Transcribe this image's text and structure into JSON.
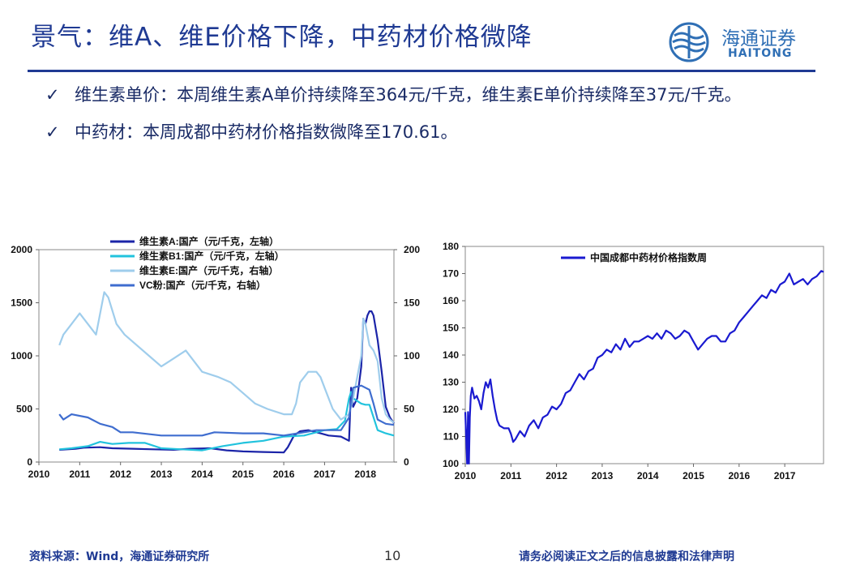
{
  "slide": {
    "title": "景气：维A、维E价格下降，中药材价格微降",
    "logo_cn": "海通证券",
    "logo_en": "HAITONG",
    "bullets": [
      "维生素单价：本周维生素A单价持续降至364元/千克，维生素E单价持续降至37元/千克。",
      "中药材：本周成都中药材价格指数微降至170.61。"
    ],
    "footer_source": "资料来源：Wind，海通证券研究所",
    "page_number": "10",
    "footer_disclaimer": "请务必阅读正文之后的信息披露和法律声明",
    "colors": {
      "title": "#1f3a93",
      "vitA": "#1b24a8",
      "vitB1": "#22c3dd",
      "vitE": "#9fcdec",
      "vc": "#3f6dcf",
      "tcm": "#1a1ad0"
    }
  },
  "chart_data": [
    {
      "type": "line",
      "x_ticks": [
        "2010",
        "2011",
        "2012",
        "2013",
        "2014",
        "2015",
        "2016",
        "2017",
        "2018"
      ],
      "xlim": [
        2010.0,
        2018.7
      ],
      "left_axis": {
        "ylim": [
          0,
          2000
        ],
        "ticks": [
          "0",
          "500",
          "1000",
          "1500",
          "2000"
        ]
      },
      "right_axis": {
        "ylim": [
          0,
          200
        ],
        "ticks": [
          "0",
          "50",
          "100",
          "150",
          "200"
        ]
      },
      "series": [
        {
          "name": "维生素A:国产（元/千克，左轴）",
          "axis": "left",
          "color": "#1b24a8",
          "x": [
            2010.5,
            2010.7,
            2010.9,
            2011.1,
            2011.5,
            2011.8,
            2012.3,
            2012.8,
            2013.3,
            2013.7,
            2014.2,
            2014.6,
            2015.0,
            2015.5,
            2016.0,
            2016.1,
            2016.25,
            2016.4,
            2016.6,
            2016.9,
            2017.1,
            2017.4,
            2017.6,
            2017.65,
            2017.7,
            2017.8,
            2017.9,
            2017.95,
            2018.0,
            2018.05,
            2018.1,
            2018.15,
            2018.2,
            2018.3,
            2018.4,
            2018.5,
            2018.6,
            2018.7
          ],
          "y": [
            115,
            120,
            125,
            135,
            140,
            130,
            125,
            120,
            115,
            125,
            130,
            110,
            100,
            95,
            90,
            140,
            250,
            290,
            300,
            270,
            250,
            240,
            200,
            700,
            520,
            600,
            900,
            1350,
            1300,
            1380,
            1420,
            1420,
            1380,
            1150,
            850,
            520,
            420,
            364
          ]
        },
        {
          "name": "维生素B1:国产（元/千克，左轴）",
          "axis": "left",
          "color": "#22c3dd",
          "x": [
            2010.5,
            2010.8,
            2011.2,
            2011.5,
            2011.8,
            2012.2,
            2012.6,
            2013.0,
            2013.5,
            2014.0,
            2014.5,
            2015.0,
            2015.5,
            2016.0,
            2016.5,
            2017.0,
            2017.3,
            2017.5,
            2017.6,
            2017.65,
            2017.7,
            2017.9,
            2018.0,
            2018.1,
            2018.3,
            2018.5,
            2018.7
          ],
          "y": [
            120,
            130,
            150,
            190,
            170,
            180,
            180,
            130,
            120,
            110,
            150,
            180,
            200,
            240,
            250,
            300,
            310,
            390,
            600,
            660,
            600,
            550,
            540,
            540,
            300,
            270,
            250
          ]
        },
        {
          "name": "维生素E:国产（元/千克，右轴）",
          "axis": "right",
          "color": "#9fcdec",
          "x": [
            2010.5,
            2010.6,
            2010.8,
            2011.0,
            2011.2,
            2011.4,
            2011.6,
            2011.7,
            2011.9,
            2012.1,
            2012.4,
            2012.7,
            2013.0,
            2013.2,
            2013.6,
            2014.0,
            2014.4,
            2014.7,
            2015.0,
            2015.3,
            2015.6,
            2016.0,
            2016.2,
            2016.3,
            2016.4,
            2016.6,
            2016.8,
            2016.9,
            2017.0,
            2017.2,
            2017.4,
            2017.6,
            2017.7,
            2017.8,
            2017.9,
            2017.95,
            2018.0,
            2018.05,
            2018.1,
            2018.2,
            2018.3,
            2018.4,
            2018.5,
            2018.6,
            2018.7
          ],
          "y": [
            110,
            120,
            130,
            140,
            130,
            120,
            160,
            155,
            130,
            120,
            110,
            100,
            90,
            95,
            105,
            85,
            80,
            75,
            65,
            55,
            50,
            45,
            45,
            55,
            75,
            85,
            85,
            80,
            70,
            50,
            40,
            45,
            60,
            80,
            100,
            135,
            130,
            120,
            110,
            105,
            95,
            60,
            45,
            40,
            37
          ]
        },
        {
          "name": "VC粉:国产（元/千克，右轴）",
          "axis": "right",
          "color": "#3f6dcf",
          "x": [
            2010.5,
            2010.6,
            2010.8,
            2011.2,
            2011.5,
            2011.8,
            2012.0,
            2012.3,
            2013.0,
            2014.0,
            2014.3,
            2015.0,
            2015.5,
            2016.0,
            2016.5,
            2016.8,
            2017.0,
            2017.4,
            2017.6,
            2017.7,
            2017.9,
            2018.0,
            2018.1,
            2018.2,
            2018.3,
            2018.5,
            2018.7
          ],
          "y": [
            45,
            40,
            45,
            42,
            36,
            33,
            28,
            28,
            25,
            25,
            28,
            27,
            27,
            25,
            28,
            30,
            30,
            30,
            42,
            70,
            72,
            70,
            68,
            55,
            40,
            36,
            35
          ]
        }
      ]
    },
    {
      "type": "line",
      "x_ticks": [
        "2010",
        "2011",
        "2012",
        "2013",
        "2014",
        "2015",
        "2016",
        "2017"
      ],
      "xlim": [
        2010.0,
        2017.85
      ],
      "ylim": [
        100,
        180
      ],
      "y_ticks": [
        "100",
        "110",
        "120",
        "130",
        "140",
        "150",
        "160",
        "170",
        "180"
      ],
      "series": [
        {
          "name": "中国成都中药材价格指数周",
          "color": "#1a1ad0",
          "x": [
            2010.0,
            2010.04,
            2010.06,
            2010.08,
            2010.1,
            2010.12,
            2010.15,
            2010.2,
            2010.25,
            2010.3,
            2010.35,
            2010.4,
            2010.45,
            2010.5,
            2010.55,
            2010.6,
            2010.65,
            2010.7,
            2010.75,
            2010.85,
            2010.95,
            2011.0,
            2011.05,
            2011.1,
            2011.2,
            2011.3,
            2011.4,
            2011.5,
            2011.6,
            2011.7,
            2011.8,
            2011.9,
            2012.0,
            2012.1,
            2012.2,
            2012.3,
            2012.4,
            2012.5,
            2012.6,
            2012.7,
            2012.8,
            2012.9,
            2013.0,
            2013.1,
            2013.2,
            2013.3,
            2013.4,
            2013.5,
            2013.6,
            2013.7,
            2013.8,
            2013.9,
            2014.0,
            2014.1,
            2014.2,
            2014.3,
            2014.4,
            2014.5,
            2014.6,
            2014.7,
            2014.8,
            2014.9,
            2015.0,
            2015.1,
            2015.2,
            2015.3,
            2015.4,
            2015.5,
            2015.6,
            2015.7,
            2015.8,
            2015.9,
            2016.0,
            2016.1,
            2016.2,
            2016.3,
            2016.4,
            2016.5,
            2016.6,
            2016.7,
            2016.8,
            2016.9,
            2017.0,
            2017.1,
            2017.2,
            2017.3,
            2017.4,
            2017.5,
            2017.6,
            2017.7,
            2017.8,
            2017.85
          ],
          "y": [
            119,
            100,
            119,
            100,
            117,
            125,
            128,
            124,
            125,
            123,
            120,
            126,
            130,
            128,
            131,
            125,
            120,
            116,
            114,
            113,
            113,
            111,
            108,
            109,
            112,
            110,
            114,
            116,
            113,
            117,
            118,
            121,
            120,
            122,
            126,
            127,
            130,
            133,
            131,
            134,
            135,
            139,
            140,
            142,
            141,
            144,
            142,
            146,
            143,
            145,
            145,
            146,
            147,
            146,
            148,
            146,
            149,
            148,
            146,
            147,
            149,
            148,
            145,
            142,
            144,
            146,
            147,
            147,
            145,
            145,
            148,
            149,
            152,
            154,
            156,
            158,
            160,
            162,
            161,
            164,
            163,
            166,
            167,
            170,
            166,
            167,
            168,
            166,
            168,
            169,
            171,
            170.61
          ]
        }
      ]
    }
  ]
}
